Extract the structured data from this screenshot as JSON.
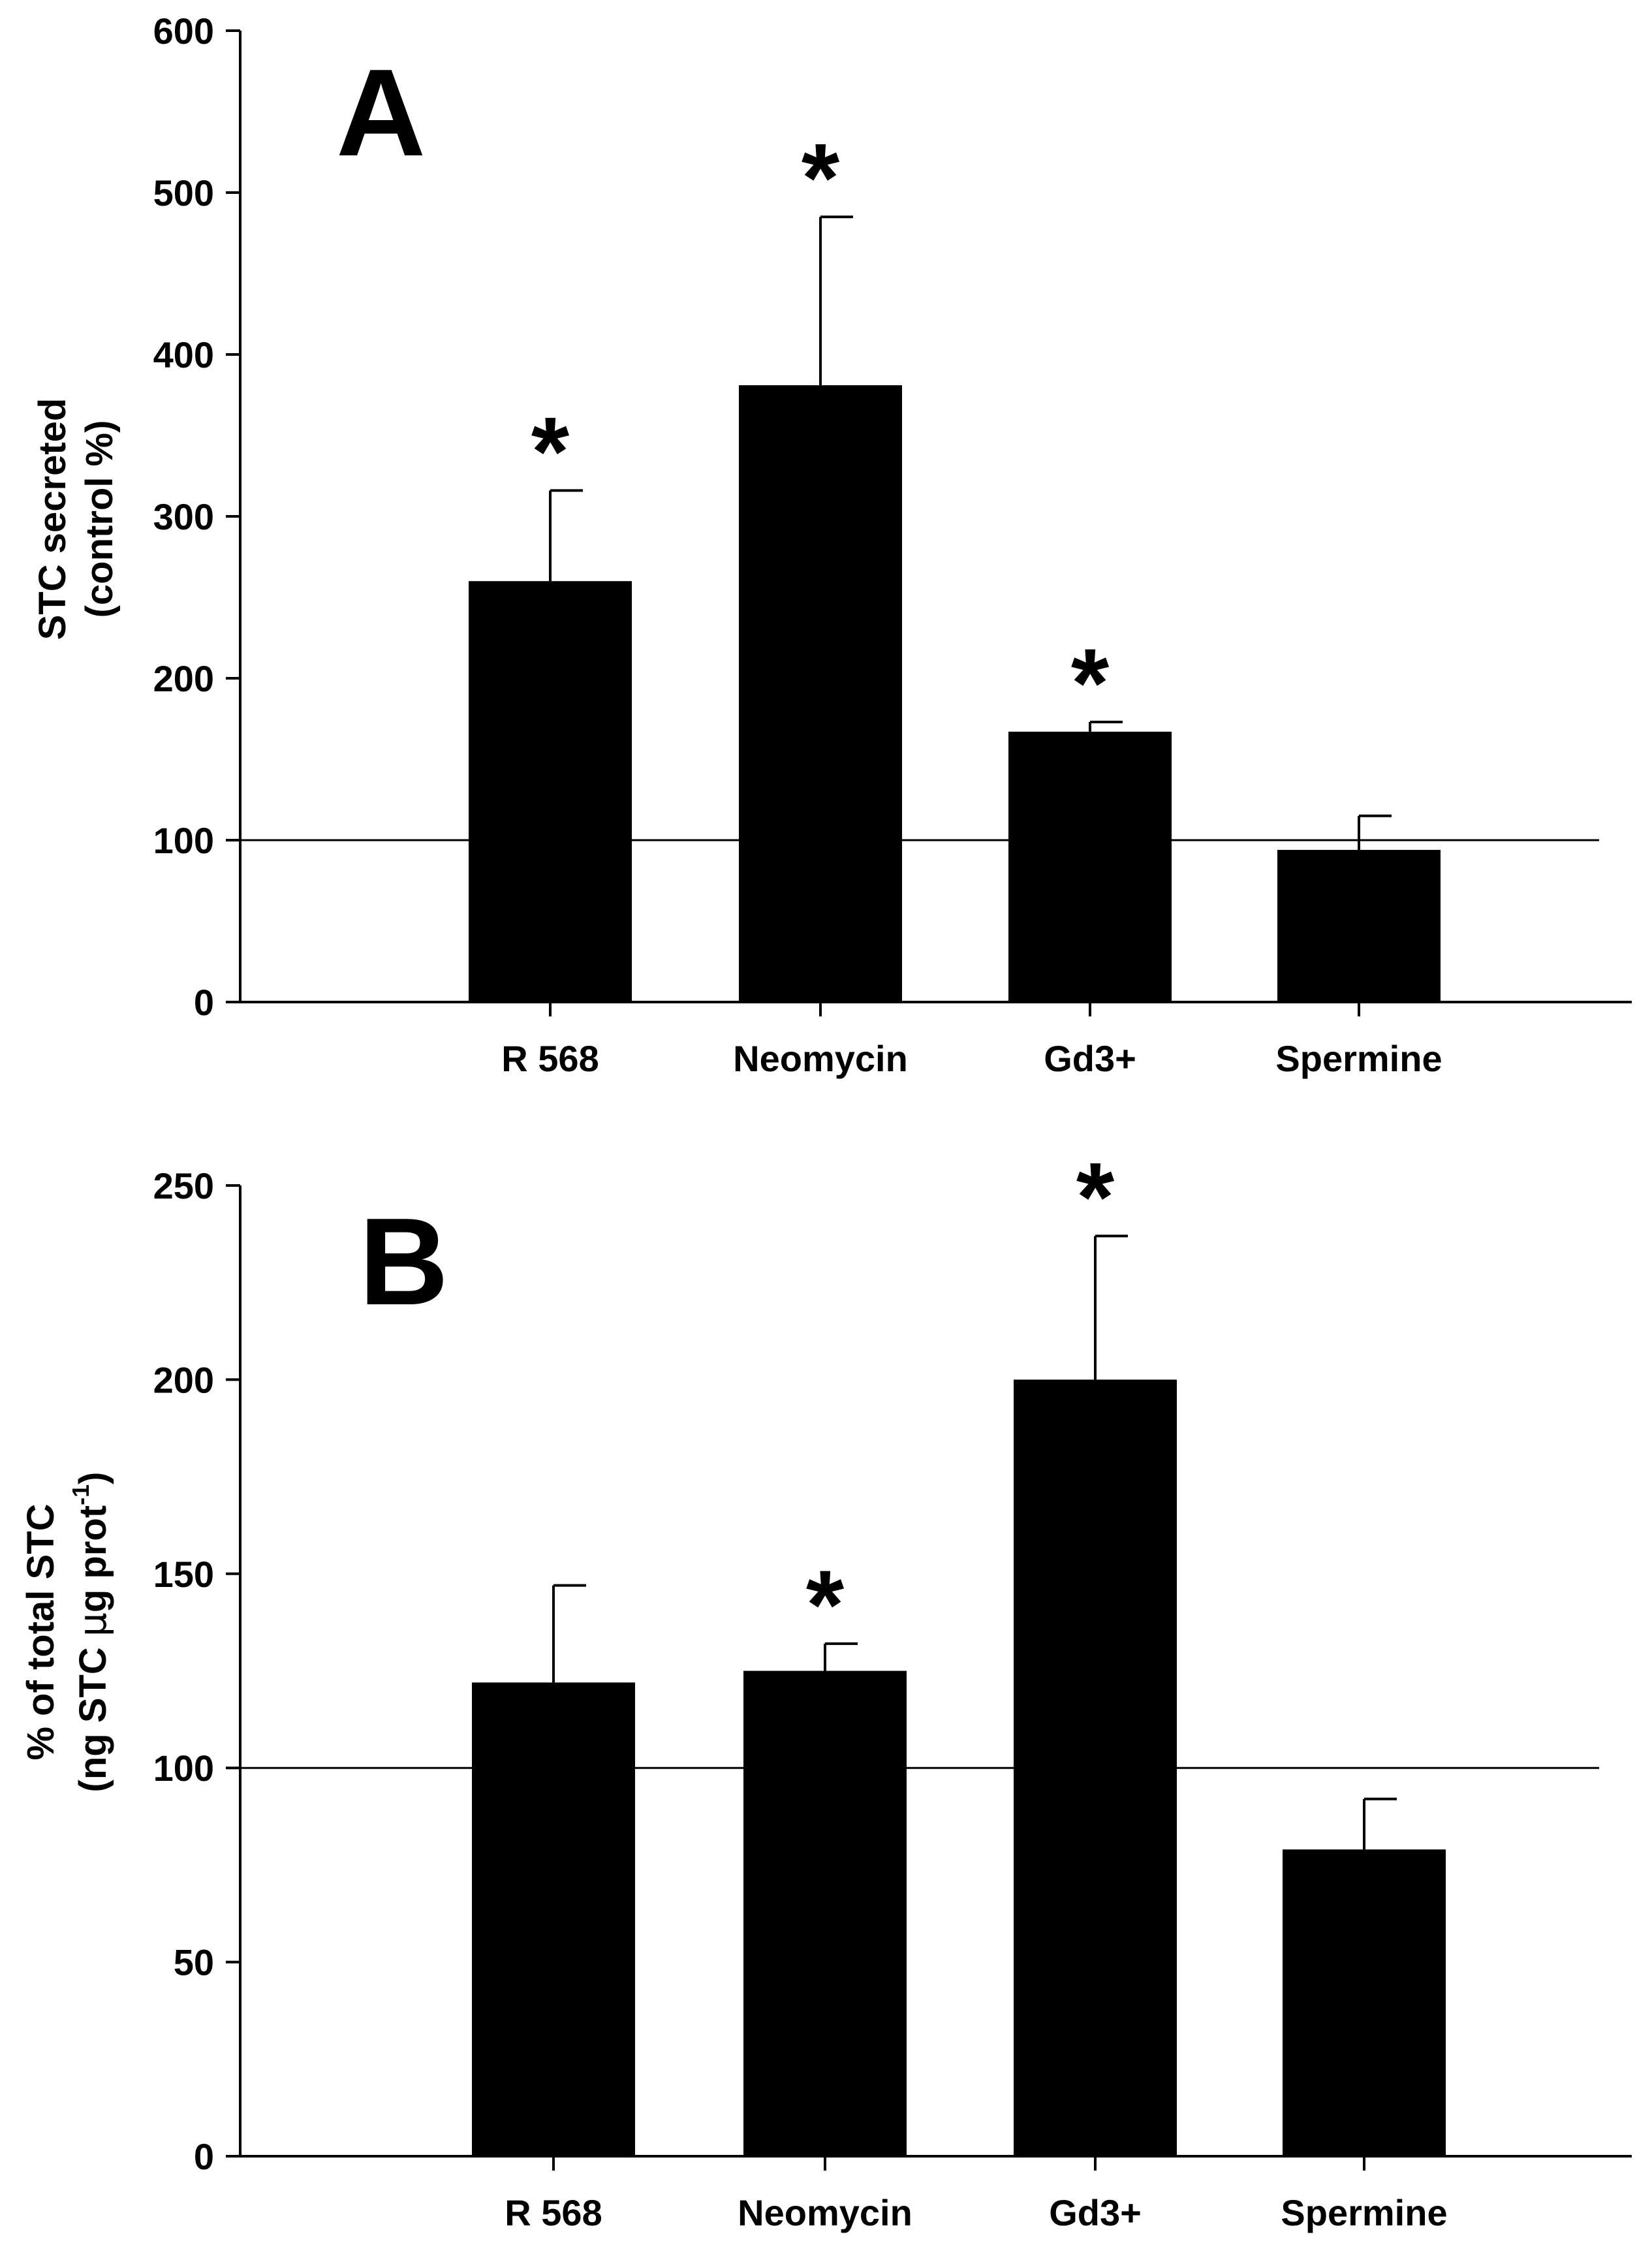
{
  "chart_data": [
    {
      "panel": "A",
      "type": "bar",
      "categories": [
        "R 568",
        "Neomycin",
        "Gd3+",
        "Spermine"
      ],
      "values": [
        260,
        381,
        167,
        94
      ],
      "error_upper": [
        316,
        485,
        173,
        115
      ],
      "significant": [
        true,
        true,
        true,
        false
      ],
      "significance_marker": "*",
      "ylabel_line1": "STC secreted",
      "ylabel_line2": "(control %)",
      "ylim": [
        0,
        600
      ],
      "yticks": [
        0,
        100,
        200,
        300,
        400,
        500,
        600
      ],
      "reference_line": 100,
      "bar_color": "#000000"
    },
    {
      "panel": "B",
      "type": "bar",
      "categories": [
        "R 568",
        "Neomycin",
        "Gd3+",
        "Spermine"
      ],
      "values": [
        122,
        125,
        200,
        79
      ],
      "error_upper": [
        147,
        132,
        237,
        92
      ],
      "significant": [
        false,
        true,
        true,
        false
      ],
      "significance_marker": "*",
      "ylabel_line1": "% of total STC",
      "ylabel_line2_pre": "(ng STC ",
      "ylabel_line2_mu": "μ",
      "ylabel_line2_post": "g prot",
      "ylabel_line2_sup": "-1",
      "ylabel_line2_end": ")",
      "ylim": [
        0,
        250
      ],
      "yticks": [
        0,
        50,
        100,
        150,
        200,
        250
      ],
      "reference_line": 100,
      "bar_color": "#000000"
    }
  ]
}
